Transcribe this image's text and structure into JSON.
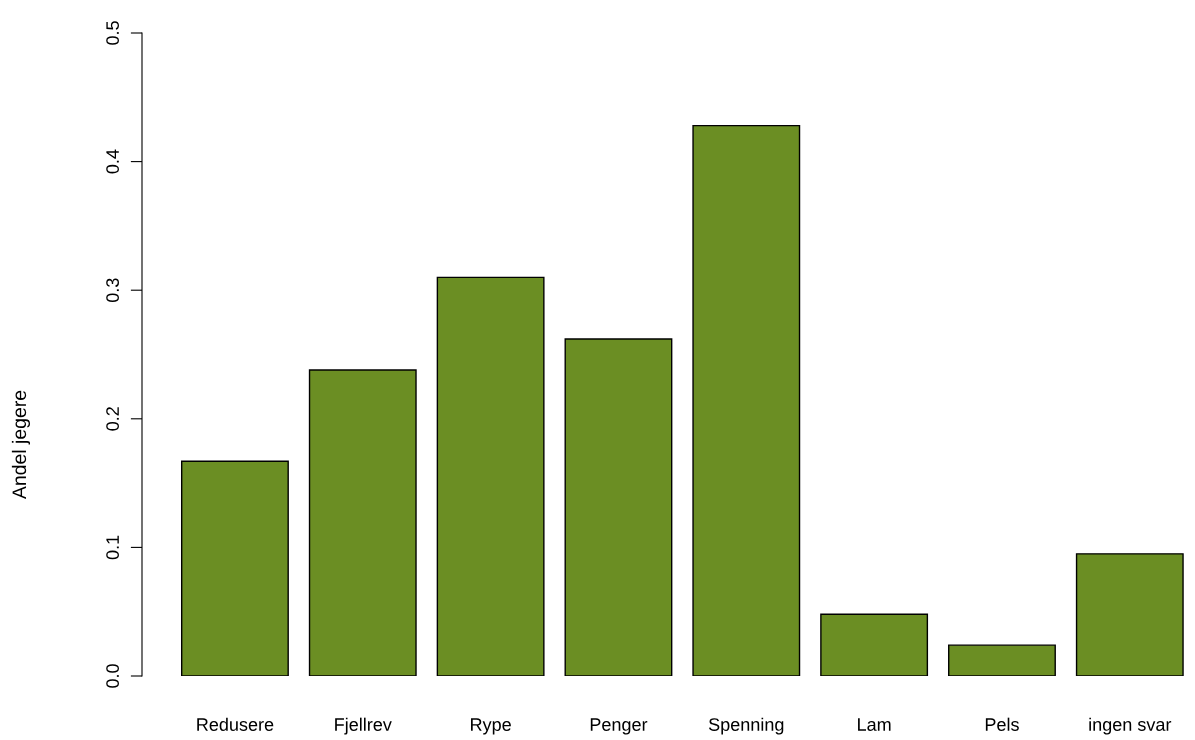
{
  "chart_data": {
    "type": "bar",
    "ylabel": "Andel jegere",
    "categories": [
      "Redusere",
      "Fjellrev",
      "Rype",
      "Penger",
      "Spenning",
      "Lam",
      "Pels",
      "ingen svar"
    ],
    "values": [
      0.167,
      0.238,
      0.31,
      0.262,
      0.428,
      0.048,
      0.024,
      0.095
    ],
    "color": "#6b8e23",
    "ylim": [
      0,
      0.5
    ],
    "yticks": [
      {
        "value": 0,
        "label": "0.0"
      },
      0.1,
      0.2,
      0.3,
      0.4,
      0.5
    ],
    "grid": false
  }
}
